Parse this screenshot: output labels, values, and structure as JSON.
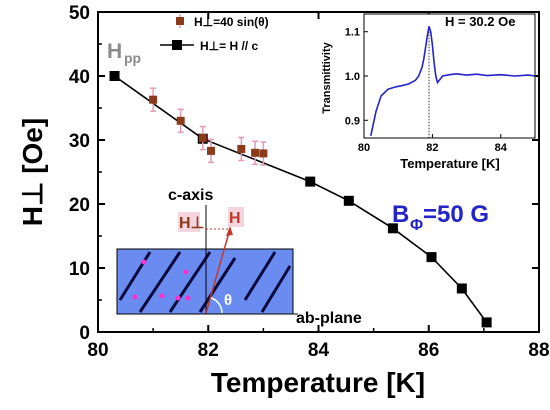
{
  "chart_data": [
    {
      "type": "scatter",
      "xlabel": "Temperature [K]",
      "ylabel": "H⊥ [Oe]",
      "xlim": [
        80,
        88
      ],
      "ylim": [
        0,
        50
      ],
      "xticks": [
        80,
        82,
        84,
        86,
        88
      ],
      "yticks": [
        0,
        10,
        20,
        30,
        40,
        50
      ],
      "series": [
        {
          "name": "H⊥=40 sin(θ)",
          "color": "#8b3a1a",
          "marker": "square-small",
          "errorbar_color": "#e59ab0",
          "points": [
            {
              "x": 81.0,
              "y": 36.3,
              "err": 1.8
            },
            {
              "x": 81.5,
              "y": 33.0,
              "err": 1.8
            },
            {
              "x": 81.9,
              "y": 30.3,
              "err": 1.8
            },
            {
              "x": 82.05,
              "y": 28.3,
              "err": 1.8
            },
            {
              "x": 82.6,
              "y": 28.6,
              "err": 1.8
            },
            {
              "x": 82.85,
              "y": 28.0,
              "err": 1.8
            },
            {
              "x": 83.0,
              "y": 27.9,
              "err": 1.8
            }
          ]
        },
        {
          "name": "H⊥= H // c",
          "color": "#000000",
          "marker": "square-line",
          "points": [
            {
              "x": 80.3,
              "y": 40.0
            },
            {
              "x": 81.9,
              "y": 30.2
            },
            {
              "x": 83.85,
              "y": 23.5
            },
            {
              "x": 84.55,
              "y": 20.5
            },
            {
              "x": 85.35,
              "y": 16.2
            },
            {
              "x": 86.05,
              "y": 11.7
            },
            {
              "x": 86.6,
              "y": 6.8
            },
            {
              "x": 87.05,
              "y": 1.5
            }
          ]
        }
      ],
      "legend_position": "top-center",
      "annotations": {
        "hpp": "H",
        "hpp_sub": "pp",
        "b_main": "B",
        "b_sub": "Φ",
        "b_rest": "=50 G",
        "caxis": "c-axis",
        "abplane": "ab-plane",
        "hperp": "H⊥",
        "h": "H",
        "theta": "θ"
      }
    },
    {
      "type": "line",
      "title": "H = 30.2 Oe",
      "xlabel": "Temperature [K]",
      "ylabel": "Transmittivity",
      "xlim": [
        80,
        85
      ],
      "ylim": [
        0.86,
        1.14
      ],
      "xticks": [
        80,
        82,
        84
      ],
      "yticks": [
        0.9,
        1.0,
        1.1
      ],
      "peak_marker_x": 81.9,
      "series": [
        {
          "color": "#2323c8",
          "x": [
            80.2,
            80.35,
            80.5,
            80.7,
            80.9,
            81.1,
            81.3,
            81.5,
            81.6,
            81.7,
            81.75,
            81.8,
            81.85,
            81.9,
            81.95,
            82.0,
            82.05,
            82.1,
            82.15,
            82.2,
            82.3,
            82.5,
            82.7,
            83.0,
            83.3,
            83.6,
            84.0,
            84.4,
            84.8,
            85.0
          ],
          "y": [
            0.865,
            0.92,
            0.955,
            0.97,
            0.975,
            0.978,
            0.982,
            0.99,
            1.0,
            1.02,
            1.04,
            1.065,
            1.09,
            1.112,
            1.1,
            1.07,
            1.03,
            1.0,
            0.985,
            0.99,
            1.0,
            1.003,
            1.005,
            1.002,
            1.004,
            1.001,
            1.003,
            1.0,
            1.002,
            1.0
          ]
        }
      ]
    }
  ]
}
